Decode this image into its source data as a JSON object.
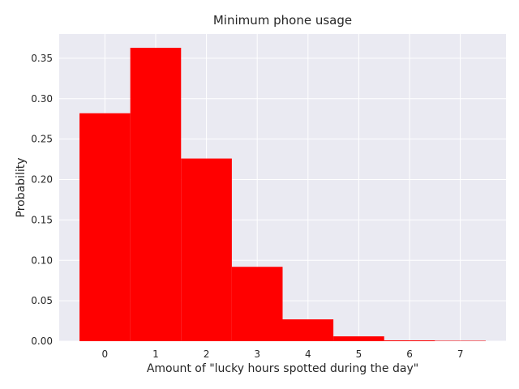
{
  "chart_data": {
    "type": "bar",
    "title": "Minimum phone usage",
    "xlabel": "Amount of \"lucky hours spotted during the day\"",
    "ylabel": "Probability",
    "categories": [
      "0",
      "1",
      "2",
      "3",
      "4",
      "5",
      "6",
      "7"
    ],
    "x": [
      0,
      1,
      2,
      3,
      4,
      5,
      6,
      7
    ],
    "values": [
      0.282,
      0.363,
      0.226,
      0.092,
      0.027,
      0.006,
      0.001,
      0.0005
    ],
    "xlim": [
      -0.9,
      7.9
    ],
    "ylim": [
      0,
      0.38
    ],
    "xticks": [
      0,
      1,
      2,
      3,
      4,
      5,
      6,
      7
    ],
    "yticks": [
      0.0,
      0.05,
      0.1,
      0.15,
      0.2,
      0.25,
      0.3,
      0.35
    ],
    "ytick_labels": [
      "0.00",
      "0.05",
      "0.10",
      "0.15",
      "0.20",
      "0.25",
      "0.30",
      "0.35"
    ],
    "grid": true,
    "colors": {
      "background": "#eaeaf2",
      "bar": "#ff0000",
      "grid": "#ffffff",
      "text": "#262626"
    }
  }
}
